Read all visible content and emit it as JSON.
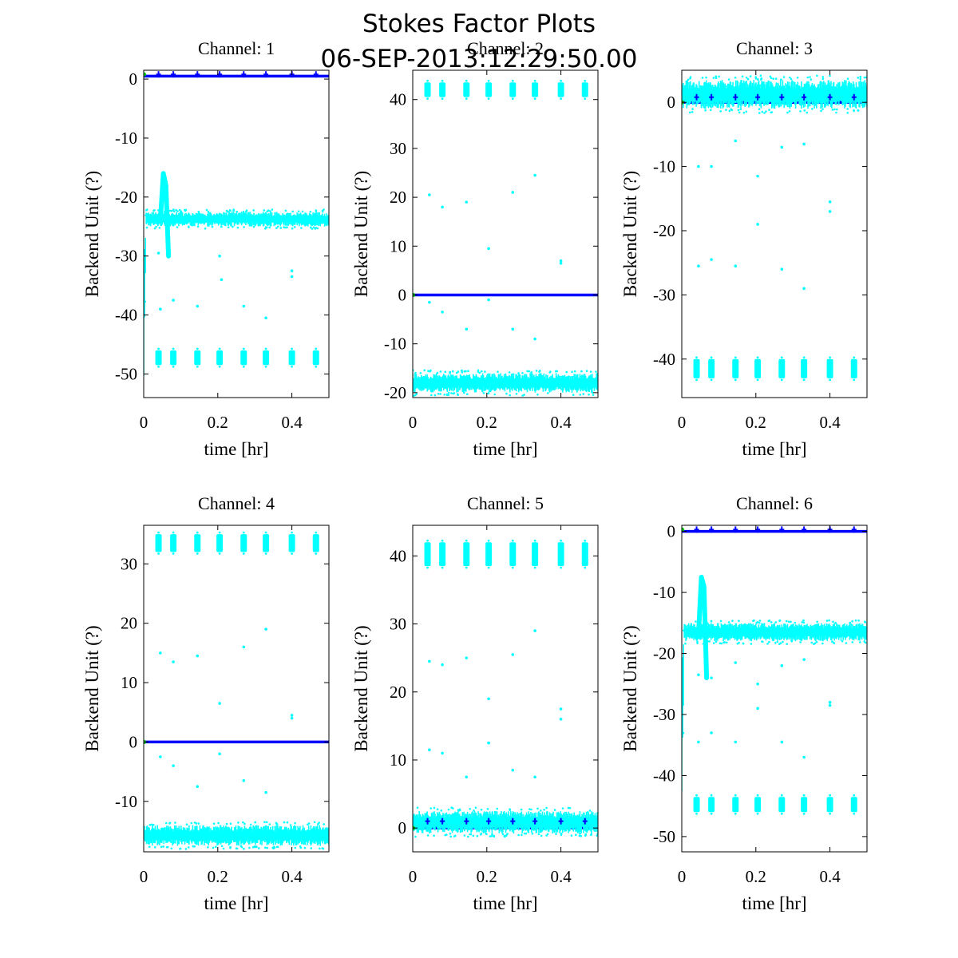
{
  "figure": {
    "title_line1": "Stokes Factor Plots",
    "title_line2": "06-SEP-2013:12:29:50.00"
  },
  "colors": {
    "noise": "#00ffff",
    "mean": "#0000ff",
    "origin": "#00cc00",
    "axes": "#000000",
    "background": "#ffffff"
  },
  "chart_data": [
    {
      "type": "scatter",
      "title": "Channel: 1",
      "xlabel": "time [hr]",
      "ylabel": "Backend Unit (?)",
      "xlim": [
        0,
        0.5
      ],
      "ylim": [
        -54,
        1.5
      ],
      "xticks": [
        0,
        0.2,
        0.4
      ],
      "xtick_labels": [
        "0",
        "0.2",
        "0.4"
      ],
      "yticks": [
        0,
        -10,
        -20,
        -30,
        -40,
        -50
      ],
      "ytick_labels": [
        "0",
        "-10",
        "-20",
        "-30",
        "-40",
        "-50"
      ],
      "series": [
        {
          "role": "mean",
          "color": "#0000ff",
          "x": [
            0,
            0.5
          ],
          "y": [
            0.5,
            0.5
          ]
        },
        {
          "role": "noise_band",
          "color": "#00ffff",
          "x": [
            0.007,
            0.5
          ],
          "y_low": [
            -25,
            -25
          ],
          "y_high": [
            -22.5,
            -22.5
          ]
        },
        {
          "role": "noise_band",
          "color": "#00ffff",
          "x": [
            0.0,
            0.007
          ],
          "y_low": [
            -51,
            -25
          ],
          "y_high": [
            -28,
            -22.5
          ]
        },
        {
          "role": "spike",
          "color": "#00ffff",
          "x": [
            0.045,
            0.053,
            0.06,
            0.067
          ],
          "y": [
            -24,
            -16,
            -18,
            -30
          ]
        },
        {
          "role": "clusters",
          "color": "#00ffff",
          "x": [
            0.04,
            0.08,
            0.145,
            0.205,
            0.27,
            0.33,
            0.4,
            0.465
          ],
          "y_low": [
            -48.5,
            -48.5,
            -48.5,
            -48.5,
            -48.5,
            -48.5,
            -48.5,
            -48.5
          ],
          "y_high": [
            -46,
            -46,
            -46,
            -46,
            -46,
            -46,
            -46,
            -46
          ]
        },
        {
          "role": "markers",
          "color": "#0000ff",
          "x": [
            0.04,
            0.08,
            0.145,
            0.205,
            0.27,
            0.33,
            0.4,
            0.465
          ],
          "y": [
            0.8,
            0.8,
            0.8,
            0.8,
            0.8,
            0.8,
            0.8,
            0.8
          ]
        },
        {
          "role": "outliers",
          "color": "#00ffff",
          "x": [
            0.04,
            0.045,
            0.08,
            0.145,
            0.205,
            0.21,
            0.27,
            0.33,
            0.4,
            0.4
          ],
          "y": [
            -29.5,
            -39,
            -37.5,
            -38.5,
            -30,
            -34,
            -38.5,
            -40.5,
            -32.5,
            -33.5
          ]
        },
        {
          "role": "origin",
          "color": "#00cc00",
          "x": [
            0.001
          ],
          "y": [
            0.8
          ]
        }
      ]
    },
    {
      "type": "scatter",
      "title": "Channel: 2",
      "xlabel": "time [hr]",
      "ylabel": "Backend Unit (?)",
      "xlim": [
        0,
        0.5
      ],
      "ylim": [
        -21,
        46
      ],
      "xticks": [
        0,
        0.2,
        0.4
      ],
      "xtick_labels": [
        "0",
        "0.2",
        "0.4"
      ],
      "yticks": [
        -20,
        -10,
        0,
        10,
        20,
        30,
        40
      ],
      "ytick_labels": [
        "-20",
        "-10",
        "0",
        "10",
        "20",
        "30",
        "40"
      ],
      "series": [
        {
          "role": "mean",
          "color": "#0000ff",
          "x": [
            0,
            0.5
          ],
          "y": [
            0,
            0
          ]
        },
        {
          "role": "noise_band",
          "color": "#00ffff",
          "x": [
            0,
            0.5
          ],
          "y_low": [
            -20,
            -20
          ],
          "y_high": [
            -16,
            -16
          ]
        },
        {
          "role": "clusters",
          "color": "#00ffff",
          "x": [
            0.04,
            0.08,
            0.145,
            0.205,
            0.27,
            0.33,
            0.4,
            0.465
          ],
          "y_low": [
            40.5,
            40.5,
            40.5,
            40.5,
            40.5,
            40.5,
            40.5,
            40.5
          ],
          "y_high": [
            43.5,
            43.5,
            43.5,
            43.5,
            43.5,
            43.5,
            43.5,
            43.5
          ]
        },
        {
          "role": "outliers",
          "color": "#00ffff",
          "x": [
            0.045,
            0.08,
            0.145,
            0.205,
            0.27,
            0.33,
            0.4,
            0.4,
            0.045,
            0.08,
            0.145,
            0.205,
            0.27,
            0.33
          ],
          "y": [
            20.5,
            18,
            19,
            9.5,
            21,
            24.5,
            6.5,
            7,
            -1.5,
            -3.5,
            -7,
            -1,
            -7,
            -9
          ]
        },
        {
          "role": "origin",
          "color": "#00cc00",
          "x": [
            0.001
          ],
          "y": [
            0
          ]
        }
      ]
    },
    {
      "type": "scatter",
      "title": "Channel: 3",
      "xlabel": "time [hr]",
      "ylabel": "Backend Unit (?)",
      "xlim": [
        0,
        0.5
      ],
      "ylim": [
        -46,
        5
      ],
      "xticks": [
        0,
        0.2,
        0.4
      ],
      "xtick_labels": [
        "0",
        "0.2",
        "0.4"
      ],
      "yticks": [
        0,
        -10,
        -20,
        -30,
        -40
      ],
      "ytick_labels": [
        "0",
        "-10",
        "-20",
        "-30",
        "-40"
      ],
      "series": [
        {
          "role": "mean",
          "color": "#0000ff",
          "x": [
            0,
            0.5
          ],
          "y": [
            0,
            0
          ]
        },
        {
          "role": "noise_band",
          "color": "#00ffff",
          "x": [
            0,
            0.5
          ],
          "y_low": [
            -1,
            -1
          ],
          "y_high": [
            3.5,
            3.5
          ]
        },
        {
          "role": "clusters",
          "color": "#00ffff",
          "x": [
            0.04,
            0.08,
            0.145,
            0.205,
            0.27,
            0.33,
            0.4,
            0.465
          ],
          "y_low": [
            -43,
            -43,
            -43,
            -43,
            -43,
            -43,
            -43,
            -43
          ],
          "y_high": [
            -40,
            -40,
            -40,
            -40,
            -40,
            -40,
            -40,
            -40
          ]
        },
        {
          "role": "markers",
          "color": "#0000ff",
          "x": [
            0.04,
            0.08,
            0.145,
            0.205,
            0.27,
            0.33,
            0.4,
            0.465
          ],
          "y": [
            0.8,
            0.8,
            0.8,
            0.8,
            0.8,
            0.8,
            0.8,
            0.8
          ]
        },
        {
          "role": "outliers",
          "color": "#00ffff",
          "x": [
            0.045,
            0.08,
            0.145,
            0.205,
            0.205,
            0.27,
            0.33,
            0.4,
            0.4,
            0.045,
            0.08,
            0.145,
            0.27,
            0.33
          ],
          "y": [
            -10,
            -10,
            -6,
            -11.5,
            -19,
            -7,
            -6.5,
            -15.5,
            -17,
            -25.5,
            -24.5,
            -25.5,
            -26,
            -29
          ]
        },
        {
          "role": "origin",
          "color": "#00cc00",
          "x": [
            0.001
          ],
          "y": [
            0
          ]
        }
      ]
    },
    {
      "type": "scatter",
      "title": "Channel: 4",
      "xlabel": "time [hr]",
      "ylabel": "Backend Unit (?)",
      "xlim": [
        0,
        0.5
      ],
      "ylim": [
        -18.5,
        36.5
      ],
      "xticks": [
        0,
        0.2,
        0.4
      ],
      "xtick_labels": [
        "0",
        "0.2",
        "0.4"
      ],
      "yticks": [
        -10,
        0,
        10,
        20,
        30
      ],
      "ytick_labels": [
        "-10",
        "0",
        "10",
        "20",
        "30"
      ],
      "series": [
        {
          "role": "mean",
          "color": "#0000ff",
          "x": [
            0,
            0.5
          ],
          "y": [
            0,
            0
          ]
        },
        {
          "role": "noise_band",
          "color": "#00ffff",
          "x": [
            0,
            0.5
          ],
          "y_low": [
            -17.5,
            -17.5
          ],
          "y_high": [
            -14,
            -14
          ]
        },
        {
          "role": "clusters",
          "color": "#00ffff",
          "x": [
            0.04,
            0.08,
            0.145,
            0.205,
            0.27,
            0.33,
            0.4,
            0.465
          ],
          "y_low": [
            32,
            32,
            32,
            32,
            32,
            32,
            32,
            32
          ],
          "y_high": [
            35,
            35,
            35,
            35,
            35,
            35,
            35,
            35
          ]
        },
        {
          "role": "outliers",
          "color": "#00ffff",
          "x": [
            0.045,
            0.08,
            0.145,
            0.205,
            0.27,
            0.33,
            0.4,
            0.4,
            0.045,
            0.08,
            0.145,
            0.205,
            0.27,
            0.33
          ],
          "y": [
            15,
            13.5,
            14.5,
            6.5,
            16,
            19,
            4.5,
            4,
            -2.5,
            -4,
            -7.5,
            -2,
            -6.5,
            -8.5
          ]
        },
        {
          "role": "origin",
          "color": "#00cc00",
          "x": [
            0.001
          ],
          "y": [
            0
          ]
        }
      ]
    },
    {
      "type": "scatter",
      "title": "Channel: 5",
      "xlabel": "time [hr]",
      "ylabel": "Backend Unit (?)",
      "xlim": [
        0,
        0.5
      ],
      "ylim": [
        -3.5,
        44.5
      ],
      "xticks": [
        0,
        0.2,
        0.4
      ],
      "xtick_labels": [
        "0",
        "0.2",
        "0.4"
      ],
      "yticks": [
        0,
        10,
        20,
        30,
        40
      ],
      "ytick_labels": [
        "0",
        "10",
        "20",
        "30",
        "40"
      ],
      "series": [
        {
          "role": "mean",
          "color": "#0000ff",
          "x": [
            0,
            0.5
          ],
          "y": [
            0,
            0
          ]
        },
        {
          "role": "noise_band",
          "color": "#00ffff",
          "x": [
            0,
            0.5
          ],
          "y_low": [
            -0.8,
            -0.8
          ],
          "y_high": [
            2.5,
            2.5
          ]
        },
        {
          "role": "clusters",
          "color": "#00ffff",
          "x": [
            0.04,
            0.08,
            0.145,
            0.205,
            0.27,
            0.33,
            0.4,
            0.465
          ],
          "y_low": [
            38.5,
            38.5,
            38.5,
            38.5,
            38.5,
            38.5,
            38.5,
            38.5
          ],
          "y_high": [
            42,
            42,
            42,
            42,
            42,
            42,
            42,
            42
          ]
        },
        {
          "role": "markers",
          "color": "#0000ff",
          "x": [
            0.04,
            0.08,
            0.145,
            0.205,
            0.27,
            0.33,
            0.4,
            0.465
          ],
          "y": [
            1,
            1,
            1,
            1,
            1,
            1,
            1,
            1
          ]
        },
        {
          "role": "outliers",
          "color": "#00ffff",
          "x": [
            0.045,
            0.08,
            0.145,
            0.205,
            0.205,
            0.27,
            0.33,
            0.4,
            0.4,
            0.045,
            0.08,
            0.145,
            0.205,
            0.27,
            0.33
          ],
          "y": [
            24.5,
            24,
            25,
            19,
            12.5,
            25.5,
            29,
            17.5,
            16,
            11.5,
            11,
            7.5,
            12.5,
            8.5,
            7.5
          ]
        },
        {
          "role": "origin",
          "color": "#00cc00",
          "x": [
            0.001
          ],
          "y": [
            0
          ]
        }
      ]
    },
    {
      "type": "scatter",
      "title": "Channel: 6",
      "xlabel": "time [hr]",
      "ylabel": "Backend Unit (?)",
      "xlim": [
        0,
        0.5
      ],
      "ylim": [
        -52.5,
        1
      ],
      "xticks": [
        0,
        0.2,
        0.4
      ],
      "xtick_labels": [
        "0",
        "0.2",
        "0.4"
      ],
      "yticks": [
        0,
        -10,
        -20,
        -30,
        -40,
        -50
      ],
      "ytick_labels": [
        "0",
        "-10",
        "-20",
        "-30",
        "-40",
        "-50"
      ],
      "series": [
        {
          "role": "mean",
          "color": "#0000ff",
          "x": [
            0,
            0.5
          ],
          "y": [
            0,
            0
          ]
        },
        {
          "role": "noise_band",
          "color": "#00ffff",
          "x": [
            0.007,
            0.5
          ],
          "y_low": [
            -18,
            -18
          ],
          "y_high": [
            -15,
            -15
          ]
        },
        {
          "role": "noise_band",
          "color": "#00ffff",
          "x": [
            0.0,
            0.007
          ],
          "y_low": [
            -50,
            -18
          ],
          "y_high": [
            -23,
            -15
          ]
        },
        {
          "role": "spike",
          "color": "#00ffff",
          "x": [
            0.045,
            0.053,
            0.06,
            0.067
          ],
          "y": [
            -17,
            -7.5,
            -9,
            -24
          ]
        },
        {
          "role": "clusters",
          "color": "#00ffff",
          "x": [
            0.04,
            0.08,
            0.145,
            0.205,
            0.27,
            0.33,
            0.4,
            0.465
          ],
          "y_low": [
            -46,
            -46,
            -46,
            -46,
            -46,
            -46,
            -46,
            -46
          ],
          "y_high": [
            -43.5,
            -43.5,
            -43.5,
            -43.5,
            -43.5,
            -43.5,
            -43.5,
            -43.5
          ]
        },
        {
          "role": "markers",
          "color": "#0000ff",
          "x": [
            0.04,
            0.08,
            0.145,
            0.205,
            0.27,
            0.33,
            0.4,
            0.465
          ],
          "y": [
            0.3,
            0.3,
            0.3,
            0.3,
            0.3,
            0.3,
            0.3,
            0.3
          ]
        },
        {
          "role": "outliers",
          "color": "#00ffff",
          "x": [
            0.045,
            0.08,
            0.145,
            0.205,
            0.205,
            0.27,
            0.33,
            0.4,
            0.4,
            0.045,
            0.08,
            0.145,
            0.27,
            0.33
          ],
          "y": [
            -23.5,
            -24,
            -21.5,
            -25,
            -29,
            -22,
            -21,
            -28,
            -28.5,
            -34.5,
            -33,
            -34.5,
            -34.5,
            -37
          ]
        },
        {
          "role": "origin",
          "color": "#00cc00",
          "x": [
            0.001
          ],
          "y": [
            0.3
          ]
        }
      ]
    }
  ]
}
